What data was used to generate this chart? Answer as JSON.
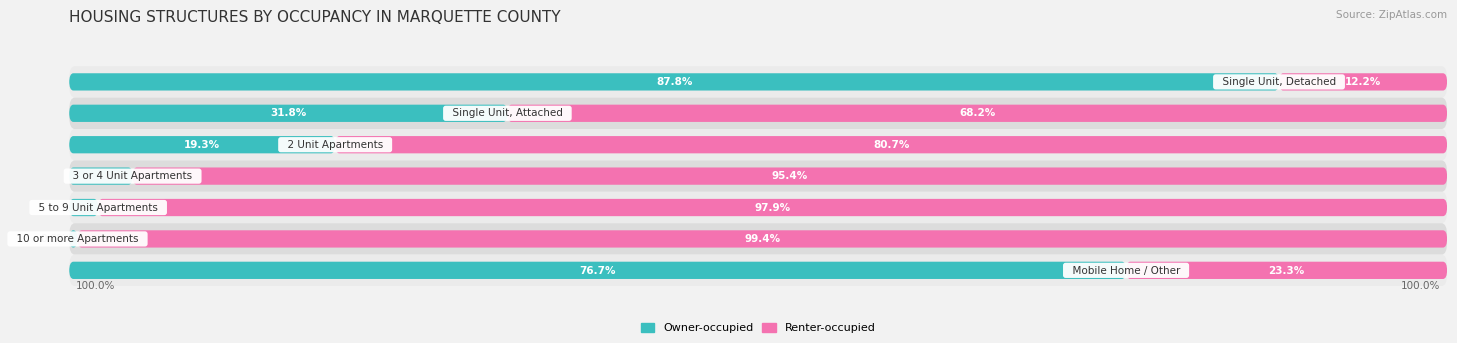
{
  "title": "HOUSING STRUCTURES BY OCCUPANCY IN MARQUETTE COUNTY",
  "source": "Source: ZipAtlas.com",
  "categories": [
    "Single Unit, Detached",
    "Single Unit, Attached",
    "2 Unit Apartments",
    "3 or 4 Unit Apartments",
    "5 to 9 Unit Apartments",
    "10 or more Apartments",
    "Mobile Home / Other"
  ],
  "owner_pct": [
    87.8,
    31.8,
    19.3,
    4.6,
    2.1,
    0.6,
    76.7
  ],
  "renter_pct": [
    12.2,
    68.2,
    80.7,
    95.4,
    97.9,
    99.4,
    23.3
  ],
  "owner_color": "#3BBFBF",
  "renter_color": "#F472B0",
  "row_bg_light": "#EBEBEB",
  "row_bg_dark": "#DCDCDC",
  "bg_color": "#F2F2F2",
  "title_fontsize": 11,
  "label_fontsize": 7.5,
  "tick_fontsize": 7.5,
  "legend_fontsize": 8,
  "source_fontsize": 7.5,
  "cat_label_fontsize": 7.5
}
